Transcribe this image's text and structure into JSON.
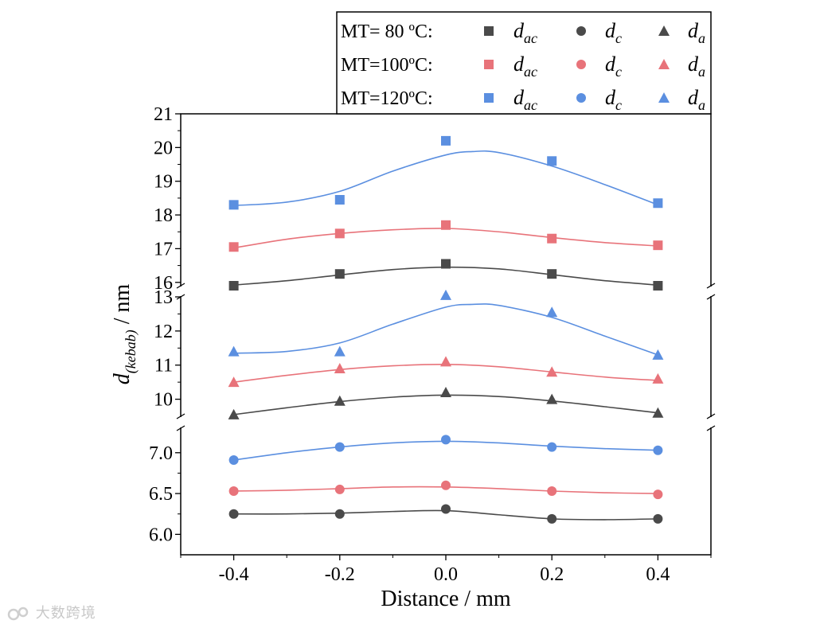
{
  "chart_data": {
    "type": "scatter",
    "title": "",
    "xlabel": "Distance / mm",
    "ylabel_main": "d",
    "ylabel_sub": "(kebab)",
    "ylabel_unit": " / nm",
    "x": [
      -0.4,
      -0.2,
      0.0,
      0.2,
      0.4
    ],
    "xlim": [
      -0.5,
      0.5
    ],
    "x_ticks": [
      "-0.4",
      "-0.2",
      "0.0",
      "0.2",
      "0.4"
    ],
    "x_tick_values": [
      -0.4,
      -0.2,
      0.0,
      0.2,
      0.4
    ],
    "y_broken_axis": true,
    "y_segments": [
      {
        "name": "lower",
        "range": [
          5.75,
          7.3
        ],
        "ticks": [
          6.0,
          6.5,
          7.0
        ],
        "tick_labels": [
          "6.0",
          "6.5",
          "7.0"
        ]
      },
      {
        "name": "middle",
        "range": [
          9.5,
          13.0
        ],
        "ticks": [
          10,
          11,
          12,
          13
        ],
        "tick_labels": [
          "10",
          "11",
          "12",
          "13"
        ]
      },
      {
        "name": "upper",
        "range": [
          15.9,
          21.0
        ],
        "ticks": [
          16,
          17,
          18,
          19,
          20,
          21
        ],
        "tick_labels": [
          "16",
          "17",
          "18",
          "19",
          "20",
          "21"
        ]
      }
    ],
    "series": [
      {
        "name": "MT=80°C d_ac",
        "temp": "80",
        "param": "ac",
        "marker": "square",
        "color": "#4a4a4a",
        "segment": "upper",
        "values": [
          15.9,
          16.25,
          16.55,
          16.25,
          15.9
        ],
        "fit": [
          [
            -0.4,
            15.92
          ],
          [
            -0.3,
            16.05
          ],
          [
            -0.2,
            16.22
          ],
          [
            -0.1,
            16.38
          ],
          [
            0.0,
            16.45
          ],
          [
            0.1,
            16.4
          ],
          [
            0.2,
            16.23
          ],
          [
            0.3,
            16.05
          ],
          [
            0.4,
            15.92
          ]
        ]
      },
      {
        "name": "MT=100°C d_ac",
        "temp": "100",
        "param": "ac",
        "marker": "square",
        "color": "#e8737a",
        "segment": "upper",
        "values": [
          17.05,
          17.45,
          17.7,
          17.3,
          17.1
        ],
        "fit": [
          [
            -0.4,
            17.02
          ],
          [
            -0.3,
            17.28
          ],
          [
            -0.2,
            17.45
          ],
          [
            -0.1,
            17.56
          ],
          [
            0.0,
            17.6
          ],
          [
            0.1,
            17.5
          ],
          [
            0.2,
            17.33
          ],
          [
            0.3,
            17.18
          ],
          [
            0.4,
            17.08
          ]
        ]
      },
      {
        "name": "MT=120°C d_ac",
        "temp": "120",
        "param": "ac",
        "marker": "square",
        "color": "#5b8fe0",
        "segment": "upper",
        "values": [
          18.3,
          18.45,
          20.2,
          19.6,
          18.35
        ],
        "fit": [
          [
            -0.4,
            18.28
          ],
          [
            -0.3,
            18.38
          ],
          [
            -0.2,
            18.7
          ],
          [
            -0.1,
            19.3
          ],
          [
            0.0,
            19.78
          ],
          [
            0.05,
            19.88
          ],
          [
            0.1,
            19.85
          ],
          [
            0.2,
            19.45
          ],
          [
            0.3,
            18.9
          ],
          [
            0.4,
            18.3
          ]
        ]
      },
      {
        "name": "MT=80°C d_a",
        "temp": "80",
        "param": "a",
        "marker": "triangle",
        "color": "#4a4a4a",
        "segment": "middle",
        "values": [
          9.55,
          9.95,
          10.2,
          10.0,
          9.6
        ],
        "fit": [
          [
            -0.4,
            9.55
          ],
          [
            -0.3,
            9.75
          ],
          [
            -0.2,
            9.93
          ],
          [
            -0.1,
            10.06
          ],
          [
            0.0,
            10.12
          ],
          [
            0.1,
            10.08
          ],
          [
            0.2,
            9.95
          ],
          [
            0.3,
            9.78
          ],
          [
            0.4,
            9.6
          ]
        ]
      },
      {
        "name": "MT=100°C d_a",
        "temp": "100",
        "param": "a",
        "marker": "triangle",
        "color": "#e8737a",
        "segment": "middle",
        "values": [
          10.5,
          10.9,
          11.1,
          10.8,
          10.6
        ],
        "fit": [
          [
            -0.4,
            10.5
          ],
          [
            -0.3,
            10.7
          ],
          [
            -0.2,
            10.87
          ],
          [
            -0.1,
            10.98
          ],
          [
            0.0,
            11.02
          ],
          [
            0.1,
            10.95
          ],
          [
            0.2,
            10.8
          ],
          [
            0.3,
            10.65
          ],
          [
            0.4,
            10.55
          ]
        ]
      },
      {
        "name": "MT=120°C d_a",
        "temp": "120",
        "param": "a",
        "marker": "triangle",
        "color": "#5b8fe0",
        "segment": "middle",
        "values": [
          11.4,
          11.4,
          13.05,
          12.55,
          11.3
        ],
        "fit": [
          [
            -0.4,
            11.35
          ],
          [
            -0.3,
            11.4
          ],
          [
            -0.2,
            11.65
          ],
          [
            -0.1,
            12.2
          ],
          [
            0.0,
            12.7
          ],
          [
            0.05,
            12.78
          ],
          [
            0.1,
            12.75
          ],
          [
            0.2,
            12.4
          ],
          [
            0.3,
            11.85
          ],
          [
            0.4,
            11.3
          ]
        ]
      },
      {
        "name": "MT=80°C d_c",
        "temp": "80",
        "param": "c",
        "marker": "circle",
        "color": "#4a4a4a",
        "segment": "lower",
        "values": [
          6.25,
          6.25,
          6.31,
          6.19,
          6.19
        ],
        "fit": [
          [
            -0.4,
            6.25
          ],
          [
            -0.3,
            6.25
          ],
          [
            -0.2,
            6.26
          ],
          [
            -0.1,
            6.28
          ],
          [
            0.0,
            6.29
          ],
          [
            0.1,
            6.24
          ],
          [
            0.2,
            6.19
          ],
          [
            0.3,
            6.18
          ],
          [
            0.4,
            6.19
          ]
        ]
      },
      {
        "name": "MT=100°C d_c",
        "temp": "100",
        "param": "c",
        "marker": "circle",
        "color": "#e8737a",
        "segment": "lower",
        "values": [
          6.53,
          6.55,
          6.6,
          6.53,
          6.49
        ],
        "fit": [
          [
            -0.4,
            6.53
          ],
          [
            -0.3,
            6.54
          ],
          [
            -0.2,
            6.56
          ],
          [
            -0.1,
            6.58
          ],
          [
            0.0,
            6.58
          ],
          [
            0.1,
            6.56
          ],
          [
            0.2,
            6.53
          ],
          [
            0.3,
            6.51
          ],
          [
            0.4,
            6.5
          ]
        ]
      },
      {
        "name": "MT=120°C d_c",
        "temp": "120",
        "param": "c",
        "marker": "circle",
        "color": "#5b8fe0",
        "segment": "lower",
        "values": [
          6.91,
          7.07,
          7.16,
          7.07,
          7.03
        ],
        "fit": [
          [
            -0.4,
            6.91
          ],
          [
            -0.3,
            7.0
          ],
          [
            -0.2,
            7.07
          ],
          [
            -0.1,
            7.12
          ],
          [
            0.0,
            7.14
          ],
          [
            0.1,
            7.12
          ],
          [
            0.2,
            7.08
          ],
          [
            0.3,
            7.05
          ],
          [
            0.4,
            7.03
          ]
        ]
      }
    ],
    "legend": {
      "placement": "top-right",
      "rows": [
        {
          "label": "MT= 80 ºC:",
          "color": "#4a4a4a",
          "temp": "80"
        },
        {
          "label": "MT=100ºC:",
          "color": "#e8737a",
          "temp": "100"
        },
        {
          "label": "MT=120ºC:",
          "color": "#5b8fe0",
          "temp": "120"
        }
      ],
      "columns": [
        {
          "param": "ac",
          "marker": "square",
          "symbol": "d",
          "sub": "ac"
        },
        {
          "param": "c",
          "marker": "circle",
          "symbol": "d",
          "sub": "c"
        },
        {
          "param": "a",
          "marker": "triangle",
          "symbol": "d",
          "sub": "a"
        }
      ]
    }
  },
  "watermark": {
    "text": "大数跨境"
  }
}
